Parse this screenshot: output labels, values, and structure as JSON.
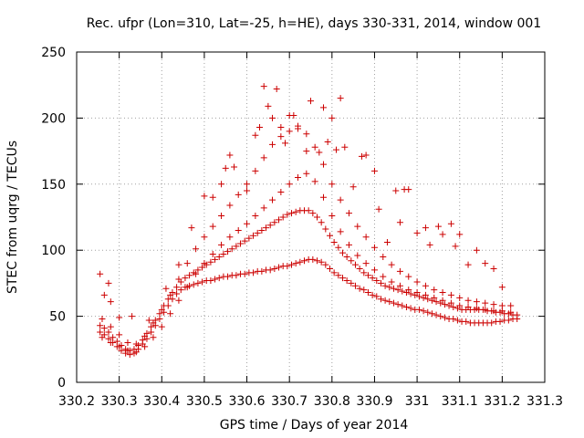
{
  "chart_data": {
    "type": "scatter",
    "title": "Rec. ufpr (Lon=310, Lat=-25, h=HE), days 330-331, 2014, window 001",
    "xlabel": "GPS time / Days of year 2014",
    "ylabel": "STEC from uqrg / TECUs",
    "xlim": [
      330.2,
      331.3
    ],
    "ylim": [
      0,
      250
    ],
    "grid": true,
    "legend": "none",
    "marker": "plus",
    "color": "#cc0000",
    "x_ticks": [
      "330.2",
      "330.3",
      "330.4",
      "330.5",
      "330.6",
      "330.7",
      "330.8",
      "330.9",
      "331",
      "331.1",
      "331.2",
      "331.3"
    ],
    "y_ticks": [
      "0",
      "50",
      "100",
      "150",
      "200",
      "250"
    ],
    "series": [
      {
        "x": [
          330.255,
          330.265,
          330.275,
          330.285,
          330.295,
          330.305,
          330.315,
          330.325,
          330.335,
          330.345,
          330.355,
          330.365,
          330.375,
          330.385,
          330.395,
          330.405,
          330.415,
          330.425,
          330.435,
          330.445,
          330.455,
          330.465,
          330.475,
          330.485,
          330.495,
          330.505,
          330.515,
          330.525,
          330.535,
          330.545,
          330.555,
          330.565,
          330.575,
          330.585,
          330.595,
          330.605,
          330.615,
          330.625,
          330.635,
          330.645,
          330.655,
          330.665,
          330.675,
          330.685,
          330.695,
          330.705,
          330.715,
          330.725,
          330.735,
          330.745,
          330.755,
          330.765,
          330.775,
          330.785,
          330.795,
          330.805,
          330.815,
          330.825,
          330.835,
          330.845,
          330.855,
          330.865,
          330.875,
          330.885,
          330.895,
          330.905,
          330.915,
          330.925,
          330.935,
          330.945,
          330.955,
          330.965,
          330.975,
          330.985,
          330.995,
          331.005,
          331.015,
          331.025,
          331.035,
          331.045,
          331.055,
          331.065,
          331.075,
          331.085,
          331.095,
          331.105,
          331.115,
          331.125,
          331.135,
          331.145,
          331.155,
          331.165,
          331.175,
          331.185,
          331.195,
          331.205,
          331.215,
          331.225,
          331.235
        ],
        "y": [
          38,
          36,
          33,
          30,
          27,
          24,
          22,
          21,
          22,
          25,
          29,
          33,
          38,
          43,
          48,
          53,
          58,
          63,
          67,
          70,
          72,
          73,
          74,
          75,
          76,
          77,
          77,
          78,
          79,
          80,
          80,
          81,
          81,
          82,
          82,
          83,
          83,
          84,
          84,
          85,
          85,
          86,
          87,
          88,
          88,
          89,
          90,
          91,
          92,
          93,
          93,
          92,
          91,
          89,
          86,
          83,
          81,
          79,
          77,
          75,
          73,
          71,
          70,
          68,
          66,
          65,
          63,
          62,
          61,
          60,
          59,
          58,
          57,
          56,
          55,
          55,
          54,
          53,
          52,
          51,
          50,
          49,
          48,
          48,
          47,
          46,
          46,
          45,
          45,
          45,
          45,
          45,
          45,
          46,
          46,
          47,
          47,
          48,
          48
        ]
      },
      {
        "x": [
          330.255,
          330.265,
          330.275,
          330.285,
          330.295,
          330.305,
          330.315,
          330.325,
          330.335,
          330.345,
          330.355,
          330.365,
          330.375,
          330.385,
          330.395,
          330.405,
          330.415,
          330.425,
          330.435,
          330.445,
          330.455,
          330.465,
          330.475,
          330.485,
          330.495,
          330.505,
          330.515,
          330.525,
          330.535,
          330.545,
          330.555,
          330.565,
          330.575,
          330.585,
          330.595,
          330.605,
          330.615,
          330.625,
          330.635,
          330.645,
          330.655,
          330.665,
          330.675,
          330.685,
          330.695,
          330.705,
          330.715,
          330.725,
          330.735,
          330.745,
          330.755,
          330.765,
          330.775,
          330.785,
          330.795,
          330.805,
          330.815,
          330.825,
          330.835,
          330.845,
          330.855,
          330.865,
          330.875,
          330.885,
          330.895,
          330.905,
          330.915,
          330.925,
          330.935,
          330.945,
          330.955,
          330.965,
          330.975,
          330.985,
          330.995,
          331.005,
          331.015,
          331.025,
          331.035,
          331.045,
          331.055,
          331.065,
          331.075,
          331.085,
          331.095,
          331.105,
          331.115,
          331.125,
          331.135,
          331.145,
          331.155,
          331.165,
          331.175,
          331.185,
          331.195,
          331.205,
          331.215,
          331.225,
          331.235
        ],
        "y": [
          43,
          41,
          38,
          34,
          31,
          28,
          25,
          24,
          25,
          28,
          32,
          37,
          42,
          47,
          52,
          58,
          63,
          68,
          72,
          76,
          79,
          81,
          83,
          85,
          87,
          89,
          91,
          93,
          95,
          97,
          99,
          101,
          103,
          105,
          107,
          109,
          111,
          113,
          115,
          117,
          119,
          121,
          123,
          125,
          127,
          128,
          129,
          130,
          130,
          130,
          128,
          125,
          121,
          116,
          111,
          106,
          102,
          98,
          95,
          92,
          89,
          86,
          83,
          81,
          79,
          77,
          75,
          73,
          72,
          71,
          70,
          69,
          68,
          67,
          66,
          65,
          64,
          63,
          62,
          61,
          60,
          59,
          58,
          57,
          56,
          55,
          55,
          55,
          55,
          55,
          55,
          54,
          54,
          53,
          53,
          52,
          52,
          51,
          51
        ]
      },
      {
        "x": [
          330.26,
          330.28,
          330.3,
          330.32,
          330.34,
          330.36,
          330.38,
          330.4,
          330.42,
          330.44,
          330.46,
          330.48,
          330.5,
          330.52,
          330.54,
          330.56,
          330.58,
          330.6,
          330.62,
          330.64,
          330.66,
          330.68,
          330.7,
          330.72,
          330.74,
          330.76,
          330.78,
          330.8,
          330.82,
          330.84,
          330.86,
          330.88,
          330.9,
          330.92,
          330.94,
          330.96,
          330.98,
          331.0,
          331.02,
          331.04,
          331.06,
          331.08,
          331.1,
          331.12,
          331.14,
          331.16,
          331.18,
          331.2,
          331.22
        ],
        "y": [
          48,
          42,
          36,
          30,
          29,
          35,
          45,
          55,
          66,
          78,
          90,
          101,
          110,
          118,
          126,
          134,
          142,
          150,
          160,
          170,
          180,
          186,
          190,
          192,
          188,
          178,
          165,
          150,
          138,
          128,
          118,
          110,
          102,
          95,
          89,
          84,
          80,
          76,
          73,
          70,
          68,
          66,
          64,
          62,
          61,
          60,
          59,
          58,
          58
        ]
      },
      {
        "x": [
          330.26,
          330.28,
          330.3,
          330.32,
          330.34,
          330.36,
          330.38,
          330.4,
          330.42,
          330.44,
          330.46,
          330.48,
          330.5,
          330.52,
          330.54,
          330.56,
          330.58,
          330.6,
          330.62,
          330.64,
          330.66,
          330.68,
          330.7,
          330.72,
          330.74,
          330.76,
          330.78,
          330.8,
          330.82,
          330.84,
          330.86,
          330.88,
          330.9,
          330.92,
          330.94,
          330.96,
          330.98,
          331.0,
          331.02,
          331.04,
          331.06,
          331.08,
          331.1,
          331.12,
          331.14,
          331.16,
          331.18,
          331.2,
          331.22
        ],
        "y": [
          34,
          30,
          27,
          24,
          23,
          27,
          34,
          42,
          52,
          62,
          72,
          82,
          90,
          97,
          104,
          110,
          115,
          120,
          126,
          132,
          138,
          144,
          150,
          155,
          158,
          152,
          140,
          126,
          114,
          104,
          96,
          90,
          85,
          80,
          76,
          73,
          70,
          68,
          66,
          64,
          62,
          60,
          58,
          57,
          56,
          55,
          54,
          54,
          53
        ]
      },
      {
        "x": [
          330.255,
          330.265,
          330.275,
          330.28,
          330.3,
          330.33,
          330.37,
          330.41,
          330.44,
          330.47,
          330.5,
          330.52,
          330.54,
          330.55,
          330.56,
          330.57,
          330.6,
          330.62,
          330.63,
          330.64,
          330.65,
          330.66,
          330.67,
          330.68,
          330.69,
          330.7,
          330.71,
          330.72,
          330.74,
          330.75,
          330.77,
          330.78,
          330.79,
          330.8,
          330.81,
          330.82,
          330.83,
          330.85,
          330.87,
          330.88,
          330.9,
          330.91,
          330.93,
          330.95,
          330.96,
          330.97,
          330.98,
          331.0,
          331.02,
          331.03,
          331.05,
          331.06,
          331.08,
          331.09,
          331.1,
          331.12,
          331.14,
          331.16,
          331.18,
          331.2
        ],
        "y": [
          82,
          66,
          75,
          61,
          49,
          50,
          47,
          71,
          89,
          117,
          141,
          140,
          150,
          162,
          172,
          163,
          145,
          187,
          193,
          224,
          209,
          200,
          222,
          193,
          181,
          202,
          202,
          194,
          175,
          213,
          174,
          208,
          182,
          200,
          176,
          215,
          178,
          148,
          171,
          172,
          160,
          131,
          106,
          145,
          121,
          146,
          146,
          113,
          117,
          104,
          118,
          112,
          120,
          103,
          112,
          89,
          100,
          90,
          86,
          72
        ]
      }
    ]
  }
}
